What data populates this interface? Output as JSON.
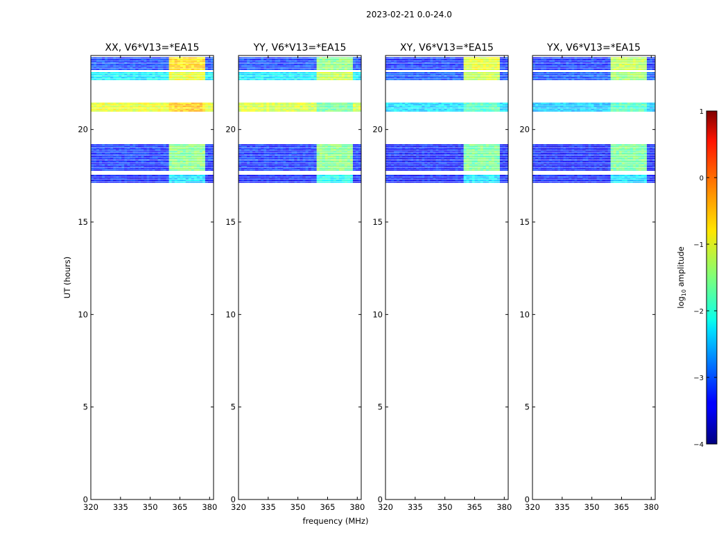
{
  "figure": {
    "suptitle": "2023-02-21 0.0-24.0",
    "xlabel": "frequency (MHz)",
    "ylabel": "UT (hours)"
  },
  "colorbar": {
    "label_prefix": "log",
    "label_subscript": "10",
    "label_suffix": " amplitude",
    "min": -4,
    "max": 1,
    "ticks": [
      -4,
      -3,
      -2,
      -1,
      0,
      1
    ],
    "tick_labels": [
      "−4",
      "−3",
      "−2",
      "−1",
      "0",
      "1"
    ],
    "colormap": "jet"
  },
  "chart_data": [
    {
      "type": "heatmap",
      "title": "XX, V6*V13=*EA15",
      "xlim": [
        320,
        382
      ],
      "ylim": [
        0,
        24
      ],
      "xticks": [
        320,
        335,
        350,
        365,
        380
      ],
      "yticks": [
        0,
        5,
        10,
        15,
        20
      ],
      "data_blocks": [
        {
          "ut": [
            17.1,
            17.55
          ],
          "log10_amp": -3.3,
          "rfi_log10_amp": -2.3
        },
        {
          "ut": [
            17.75,
            19.2
          ],
          "log10_amp": -3.2,
          "rfi_log10_amp": -1.5
        },
        {
          "ut": [
            20.95,
            21.45
          ],
          "log10_amp": -1.0,
          "rfi_log10_amp": -0.6
        },
        {
          "ut": [
            22.65,
            23.1
          ],
          "log10_amp": -2.2,
          "rfi_log10_amp": -1.0
        },
        {
          "ut": [
            23.2,
            23.9
          ],
          "log10_amp": -3.1,
          "rfi_log10_amp": -0.7
        }
      ],
      "rfi_band_mhz": [
        360,
        378
      ]
    },
    {
      "type": "heatmap",
      "title": "YY, V6*V13=*EA15",
      "xlim": [
        320,
        382
      ],
      "ylim": [
        0,
        24
      ],
      "xticks": [
        320,
        335,
        350,
        365,
        380
      ],
      "yticks": [
        0,
        5,
        10,
        15,
        20
      ],
      "data_blocks": [
        {
          "ut": [
            17.1,
            17.55
          ],
          "log10_amp": -3.3,
          "rfi_log10_amp": -2.1
        },
        {
          "ut": [
            17.75,
            19.2
          ],
          "log10_amp": -3.2,
          "rfi_log10_amp": -1.5
        },
        {
          "ut": [
            20.95,
            21.45
          ],
          "log10_amp": -1.1,
          "rfi_log10_amp": -1.6
        },
        {
          "ut": [
            22.65,
            23.1
          ],
          "log10_amp": -2.2,
          "rfi_log10_amp": -1.2
        },
        {
          "ut": [
            23.2,
            23.9
          ],
          "log10_amp": -3.1,
          "rfi_log10_amp": -1.5
        }
      ],
      "rfi_band_mhz": [
        360,
        378
      ]
    },
    {
      "type": "heatmap",
      "title": "XY, V6*V13=*EA15",
      "xlim": [
        320,
        382
      ],
      "ylim": [
        0,
        24
      ],
      "xticks": [
        320,
        335,
        350,
        365,
        380
      ],
      "yticks": [
        0,
        5,
        10,
        15,
        20
      ],
      "data_blocks": [
        {
          "ut": [
            17.1,
            17.55
          ],
          "log10_amp": -3.3,
          "rfi_log10_amp": -2.3
        },
        {
          "ut": [
            17.75,
            19.2
          ],
          "log10_amp": -3.3,
          "rfi_log10_amp": -1.6
        },
        {
          "ut": [
            20.95,
            21.45
          ],
          "log10_amp": -2.3,
          "rfi_log10_amp": -1.8
        },
        {
          "ut": [
            22.65,
            23.1
          ],
          "log10_amp": -3.0,
          "rfi_log10_amp": -1.2
        },
        {
          "ut": [
            23.2,
            23.9
          ],
          "log10_amp": -3.2,
          "rfi_log10_amp": -1.0
        }
      ],
      "rfi_band_mhz": [
        360,
        378
      ]
    },
    {
      "type": "heatmap",
      "title": "YX, V6*V13=*EA15",
      "xlim": [
        320,
        382
      ],
      "ylim": [
        0,
        24
      ],
      "xticks": [
        320,
        335,
        350,
        365,
        380
      ],
      "yticks": [
        0,
        5,
        10,
        15,
        20
      ],
      "data_blocks": [
        {
          "ut": [
            17.1,
            17.55
          ],
          "log10_amp": -3.3,
          "rfi_log10_amp": -2.3
        },
        {
          "ut": [
            17.75,
            19.2
          ],
          "log10_amp": -3.3,
          "rfi_log10_amp": -1.6
        },
        {
          "ut": [
            20.95,
            21.45
          ],
          "log10_amp": -2.4,
          "rfi_log10_amp": -1.8
        },
        {
          "ut": [
            22.65,
            23.1
          ],
          "log10_amp": -3.0,
          "rfi_log10_amp": -1.4
        },
        {
          "ut": [
            23.2,
            23.9
          ],
          "log10_amp": -3.2,
          "rfi_log10_amp": -1.2
        }
      ],
      "rfi_band_mhz": [
        360,
        378
      ]
    }
  ]
}
